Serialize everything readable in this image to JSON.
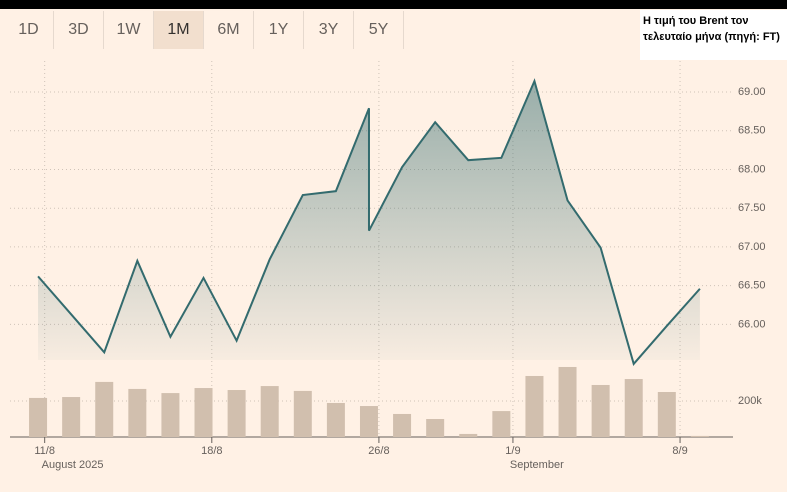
{
  "tabs": [
    "1D",
    "3D",
    "1W",
    "1M",
    "6M",
    "1Y",
    "3Y",
    "5Y"
  ],
  "selected_tab_index": 3,
  "note": "Η τιμή του Brent τον τελευταίο μήνα (πηγή: FT)",
  "chart_data": {
    "type": "line",
    "series": [
      {
        "color": "#336b6e",
        "x": [
          0,
          1,
          2,
          3,
          4,
          5,
          6,
          7,
          8,
          9,
          10,
          10,
          11,
          12,
          13,
          14,
          15,
          16,
          17,
          18,
          19,
          20
        ],
        "values": [
          66.62,
          66.13,
          65.64,
          66.82,
          65.84,
          66.6,
          65.79,
          66.84,
          67.67,
          67.72,
          68.79,
          67.21,
          68.03,
          68.61,
          68.12,
          68.15,
          69.14,
          67.6,
          66.99,
          65.49,
          65.98,
          66.46
        ]
      },
      {
        "type": "bar",
        "axis": "y2",
        "color": "#d1bfae",
        "x": [
          0,
          1,
          2,
          3,
          4,
          5,
          6,
          7,
          8,
          9,
          10,
          11,
          12,
          13,
          14,
          15,
          16,
          17,
          18,
          19,
          20
        ],
        "values": [
          217000,
          222000,
          306000,
          267000,
          244000,
          272000,
          261000,
          283000,
          256000,
          189000,
          172000,
          128000,
          100000,
          17000,
          144000,
          339000,
          389000,
          289000,
          322000,
          250000,
          6000
        ]
      }
    ],
    "xlim": [
      -1.15,
      21
    ],
    "xticks": [
      {
        "value": 0.2,
        "label": "11/8"
      },
      {
        "value": 5.25,
        "label": "18/8"
      },
      {
        "value": 10.3,
        "label": "26/8"
      },
      {
        "value": 14.35,
        "label": "1/9"
      },
      {
        "value": 19.4,
        "label": "8/9"
      }
    ],
    "annotations": [
      {
        "text": "August 2025",
        "x": 0.2
      },
      {
        "text": "September",
        "x": 14.35
      }
    ],
    "ylim": [
      65.45,
      69.4
    ],
    "yticks": [
      {
        "value": 66,
        "label": "66.00"
      },
      {
        "value": 66.5,
        "label": "66.50"
      },
      {
        "value": 67,
        "label": "67.00"
      },
      {
        "value": 67.5,
        "label": "67.50"
      },
      {
        "value": 68,
        "label": "68.00"
      },
      {
        "value": 68.5,
        "label": "68.50"
      },
      {
        "value": 69,
        "label": "69.00"
      }
    ],
    "y2lim": [
      0,
      400000
    ],
    "y2ticks": [
      {
        "value": 200000,
        "label": "200k"
      }
    ],
    "grid": true
  }
}
